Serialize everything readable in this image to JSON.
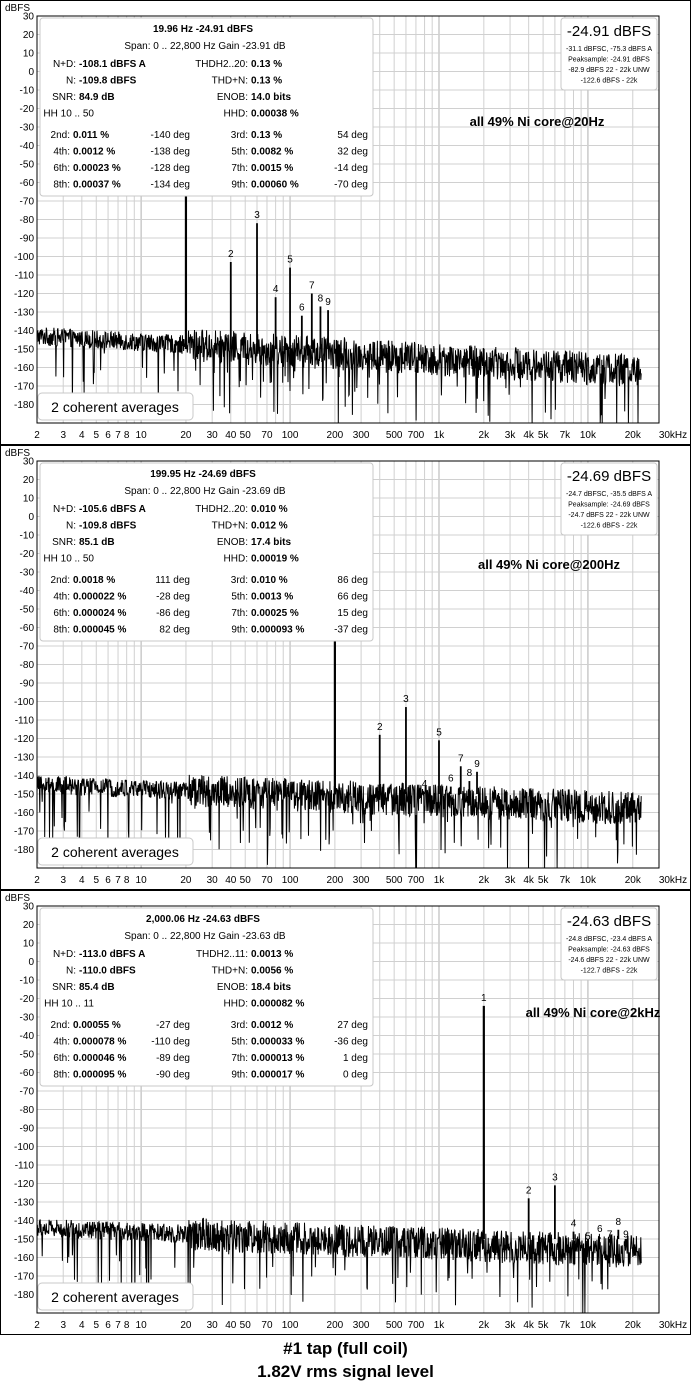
{
  "footer": {
    "line1": "#1 tap (full coil)",
    "line2": "1.82V rms signal level"
  },
  "colors": {
    "trace": "#000000",
    "grid": "#d0d0d0",
    "grid_major": "#b0b0b0",
    "frame": "#000000",
    "box_border": "#c8c8c8"
  },
  "chart_data": [
    {
      "type": "line",
      "title": "all 49% Ni core@20Hz",
      "ylabel": "dBFS",
      "x_scale": "log",
      "xlim": [
        2,
        30000
      ],
      "ylim": [
        -190,
        30
      ],
      "x_ticks": [
        2,
        3,
        4,
        5,
        6,
        7,
        8,
        10,
        20,
        30,
        40,
        50,
        70,
        100,
        200,
        300,
        500,
        700,
        1000,
        2000,
        3000,
        4000,
        5000,
        7000,
        10000,
        20000,
        30000
      ],
      "x_tick_labels": [
        "2",
        "3",
        "4",
        "5",
        "6",
        "7",
        "8",
        "10",
        "20",
        "30",
        "40",
        "50",
        "70",
        "100",
        "200",
        "300",
        "500",
        "700",
        "1k",
        "2k",
        "3k",
        "4k",
        "5k",
        "7k",
        "10k",
        "20k",
        "30kHz"
      ],
      "y_ticks": [
        30,
        20,
        10,
        0,
        -10,
        -20,
        -30,
        -40,
        -50,
        -60,
        -70,
        -80,
        -90,
        -100,
        -110,
        -120,
        -130,
        -140,
        -150,
        -160,
        -170,
        -180
      ],
      "noise_floor": {
        "low_freq_dbfs": -143,
        "high_freq_dbfs": -162
      },
      "harmonics": [
        {
          "label": "1",
          "freq": 20,
          "dbfs": -25
        },
        {
          "label": "2",
          "freq": 40,
          "dbfs": -103
        },
        {
          "label": "3",
          "freq": 60,
          "dbfs": -82
        },
        {
          "label": "4",
          "freq": 80,
          "dbfs": -122
        },
        {
          "label": "5",
          "freq": 100,
          "dbfs": -106
        },
        {
          "label": "6",
          "freq": 120,
          "dbfs": -132
        },
        {
          "label": "7",
          "freq": 140,
          "dbfs": -120
        },
        {
          "label": "8",
          "freq": 160,
          "dbfs": -127
        },
        {
          "label": "9",
          "freq": 180,
          "dbfs": -129
        }
      ],
      "level_box": {
        "value": "-24.91 dBFS",
        "lines": [
          "-31.1 dBFSC, -75.3 dBFS A",
          "Peaksample: -24.91 dBFS",
          "-82.9 dBFS 22 - 22k UNW",
          "-122.6 dBFS - 22k"
        ]
      },
      "averages_label": "2 coherent averages",
      "stats": {
        "header1": "19.96 Hz  -24.91 dBFS",
        "header2": "Span: 0 .. 22,800 Hz  Gain -23.91 dB",
        "rows": [
          [
            "N+D:",
            "-108.1 dBFS A",
            "THDH2..20:",
            "0.13 %",
            ""
          ],
          [
            "N:",
            "-109.8 dBFS",
            "THD+N:",
            "0.13 %",
            ""
          ],
          [
            "SNR:",
            "84.9 dB",
            "ENOB:",
            "14.0 bits",
            ""
          ],
          [
            "HH 10 .. 50",
            "",
            "HHD:",
            "0.00038 %",
            ""
          ]
        ],
        "harm_rows": [
          [
            "2nd:",
            "0.011 %",
            "-140 deg",
            "3rd:",
            "0.13 %",
            "54 deg"
          ],
          [
            "4th:",
            "0.0012 %",
            "-138 deg",
            "5th:",
            "0.0082 %",
            "32 deg"
          ],
          [
            "6th:",
            "0.00023 %",
            "-128 deg",
            "7th:",
            "0.0015 %",
            "-14 deg"
          ],
          [
            "8th:",
            "0.00037 %",
            "-134 deg",
            "9th:",
            "0.00060 %",
            "-70 deg"
          ]
        ]
      }
    },
    {
      "type": "line",
      "title": "all 49% Ni core@200Hz",
      "ylabel": "dBFS",
      "x_scale": "log",
      "xlim": [
        2,
        30000
      ],
      "ylim": [
        -190,
        30
      ],
      "x_ticks": [
        2,
        3,
        4,
        5,
        6,
        7,
        8,
        10,
        20,
        30,
        40,
        50,
        70,
        100,
        200,
        300,
        500,
        700,
        1000,
        2000,
        3000,
        4000,
        5000,
        7000,
        10000,
        20000,
        30000
      ],
      "x_tick_labels": [
        "2",
        "3",
        "4",
        "5",
        "6",
        "7",
        "8",
        "10",
        "20",
        "30",
        "40",
        "50",
        "70",
        "100",
        "200",
        "300",
        "500",
        "700",
        "1k",
        "2k",
        "3k",
        "4k",
        "5k",
        "7k",
        "10k",
        "20k",
        "30kHz"
      ],
      "y_ticks": [
        30,
        20,
        10,
        0,
        -10,
        -20,
        -30,
        -40,
        -50,
        -60,
        -70,
        -80,
        -90,
        -100,
        -110,
        -120,
        -130,
        -140,
        -150,
        -160,
        -170,
        -180
      ],
      "noise_floor": {
        "low_freq_dbfs": -145,
        "high_freq_dbfs": -158
      },
      "harmonics": [
        {
          "label": "1",
          "freq": 200,
          "dbfs": -25
        },
        {
          "label": "2",
          "freq": 400,
          "dbfs": -118
        },
        {
          "label": "3",
          "freq": 600,
          "dbfs": -103
        },
        {
          "label": "4",
          "freq": 800,
          "dbfs": -149
        },
        {
          "label": "5",
          "freq": 1000,
          "dbfs": -121
        },
        {
          "label": "6",
          "freq": 1200,
          "dbfs": -146
        },
        {
          "label": "7",
          "freq": 1400,
          "dbfs": -135
        },
        {
          "label": "8",
          "freq": 1600,
          "dbfs": -143
        },
        {
          "label": "9",
          "freq": 1800,
          "dbfs": -138
        }
      ],
      "level_box": {
        "value": "-24.69 dBFS",
        "lines": [
          "-24.7 dBFSC, -35.5 dBFS A",
          "Peaksample: -24.69 dBFS",
          "-24.7 dBFS 22 - 22k UNW",
          "-122.6 dBFS - 22k"
        ]
      },
      "averages_label": "2 coherent averages",
      "stats": {
        "header1": "199.95 Hz  -24.69 dBFS",
        "header2": "Span: 0 .. 22,800 Hz  Gain -23.69 dB",
        "rows": [
          [
            "N+D:",
            "-105.6 dBFS A",
            "THDH2..20:",
            "0.010 %",
            ""
          ],
          [
            "N:",
            "-109.8 dBFS",
            "THD+N:",
            "0.012 %",
            ""
          ],
          [
            "SNR:",
            "85.1 dB",
            "ENOB:",
            "17.4 bits",
            ""
          ],
          [
            "HH 10 .. 50",
            "",
            "HHD:",
            "0.00019 %",
            ""
          ]
        ],
        "harm_rows": [
          [
            "2nd:",
            "0.0018 %",
            "111 deg",
            "3rd:",
            "0.010 %",
            "86 deg"
          ],
          [
            "4th:",
            "0.000022 %",
            "-28 deg",
            "5th:",
            "0.0013 %",
            "66 deg"
          ],
          [
            "6th:",
            "0.000024 %",
            "-86 deg",
            "7th:",
            "0.00025 %",
            "15 deg"
          ],
          [
            "8th:",
            "0.000045 %",
            "82 deg",
            "9th:",
            "0.000093 %",
            "-37 deg"
          ]
        ]
      }
    },
    {
      "type": "line",
      "title": "all 49% Ni core@2kHz",
      "ylabel": "dBFS",
      "x_scale": "log",
      "xlim": [
        2,
        30000
      ],
      "ylim": [
        -190,
        30
      ],
      "x_ticks": [
        2,
        3,
        4,
        5,
        6,
        7,
        8,
        10,
        20,
        30,
        40,
        50,
        70,
        100,
        200,
        300,
        500,
        700,
        1000,
        2000,
        3000,
        4000,
        5000,
        7000,
        10000,
        20000,
        30000
      ],
      "x_tick_labels": [
        "2",
        "3",
        "4",
        "5",
        "6",
        "7",
        "8",
        "10",
        "20",
        "30",
        "40",
        "50",
        "70",
        "100",
        "200",
        "300",
        "500",
        "700",
        "1k",
        "2k",
        "3k",
        "4k",
        "5k",
        "7k",
        "10k",
        "20k",
        "30kHz"
      ],
      "y_ticks": [
        30,
        20,
        10,
        0,
        -10,
        -20,
        -30,
        -40,
        -50,
        -60,
        -70,
        -80,
        -90,
        -100,
        -110,
        -120,
        -130,
        -140,
        -150,
        -160,
        -170,
        -180
      ],
      "noise_floor": {
        "low_freq_dbfs": -144,
        "high_freq_dbfs": -157
      },
      "harmonics": [
        {
          "label": "1",
          "freq": 2000,
          "dbfs": -24
        },
        {
          "label": "2",
          "freq": 4000,
          "dbfs": -128
        },
        {
          "label": "3",
          "freq": 6000,
          "dbfs": -121
        },
        {
          "label": "4",
          "freq": 8000,
          "dbfs": -146
        },
        {
          "label": "5",
          "freq": 10000,
          "dbfs": -153
        },
        {
          "label": "6",
          "freq": 12000,
          "dbfs": -149
        },
        {
          "label": "7",
          "freq": 14000,
          "dbfs": -152
        },
        {
          "label": "8",
          "freq": 16000,
          "dbfs": -145
        },
        {
          "label": "9",
          "freq": 18000,
          "dbfs": -152
        }
      ],
      "level_box": {
        "value": "-24.63 dBFS",
        "lines": [
          "-24.8 dBFSC, -23.4 dBFS A",
          "Peaksample: -24.63 dBFS",
          "-24.6 dBFS 22 - 22k UNW",
          "-122.7 dBFS - 22k"
        ]
      },
      "averages_label": "2 coherent averages",
      "stats": {
        "header1": "2,000.06 Hz  -24.63 dBFS",
        "header2": "Span: 0 .. 22,800 Hz  Gain -23.63 dB",
        "rows": [
          [
            "N+D:",
            "-113.0 dBFS A",
            "THDH2..11:",
            "0.0013 %",
            ""
          ],
          [
            "N:",
            "-110.0 dBFS",
            "THD+N:",
            "0.0056 %",
            ""
          ],
          [
            "SNR:",
            "85.4 dB",
            "ENOB:",
            "18.4 bits",
            ""
          ],
          [
            "HH 10 .. 11",
            "",
            "HHD:",
            "0.000082 %",
            ""
          ]
        ],
        "harm_rows": [
          [
            "2nd:",
            "0.00055 %",
            "-27 deg",
            "3rd:",
            "0.0012 %",
            "27 deg"
          ],
          [
            "4th:",
            "0.000078 %",
            "-110 deg",
            "5th:",
            "0.000033 %",
            "-36 deg"
          ],
          [
            "6th:",
            "0.000046 %",
            "-89 deg",
            "7th:",
            "0.000013 %",
            "1 deg"
          ],
          [
            "8th:",
            "0.000095 %",
            "-90 deg",
            "9th:",
            "0.000017 %",
            "0 deg"
          ]
        ]
      }
    }
  ]
}
